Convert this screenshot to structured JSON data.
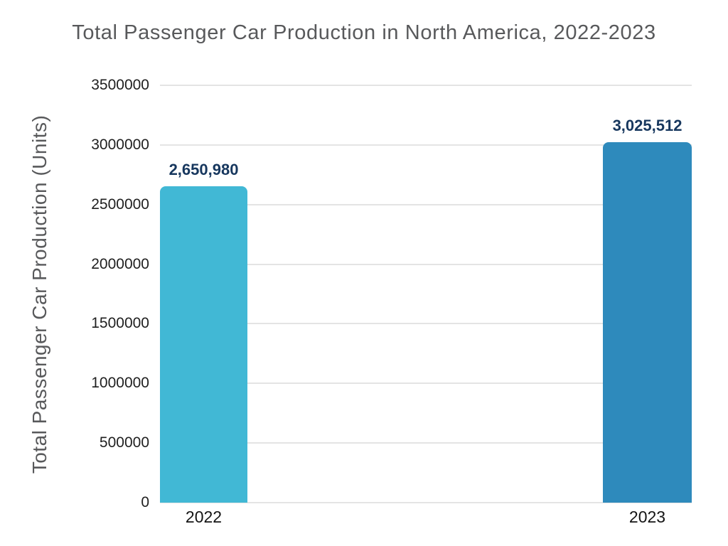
{
  "title": "Total Passenger Car Production in North America, 2022-2023",
  "chart_data": {
    "type": "bar",
    "title": "Total Passenger Car Production in North America, 2022-2023",
    "categories": [
      "2022",
      "2023"
    ],
    "values": [
      2650980,
      3025512
    ],
    "value_labels": [
      "2,650,980",
      "3,025,512"
    ],
    "bar_colors": [
      "#41b8d5",
      "#2e8abc"
    ],
    "xlabel": "",
    "ylabel": "Total Passenger Car Production (Units)",
    "ylim": [
      0,
      3500000
    ],
    "ytick_interval": 500000,
    "ytick_labels": [
      "3500000",
      "3000000",
      "2500000",
      "2000000",
      "1500000",
      "1000000",
      "500000",
      "0"
    ],
    "grid": true,
    "legend": false
  },
  "colors": {
    "background": "#ffffff",
    "title_text": "#58595b",
    "axis_label_text": "#58595b",
    "tick_text": "#1f1f1f",
    "gridline": "#e4e4e4",
    "data_label_text": "#17375e",
    "bar_2022": "#41b8d5",
    "bar_2023": "#2e8abc"
  }
}
